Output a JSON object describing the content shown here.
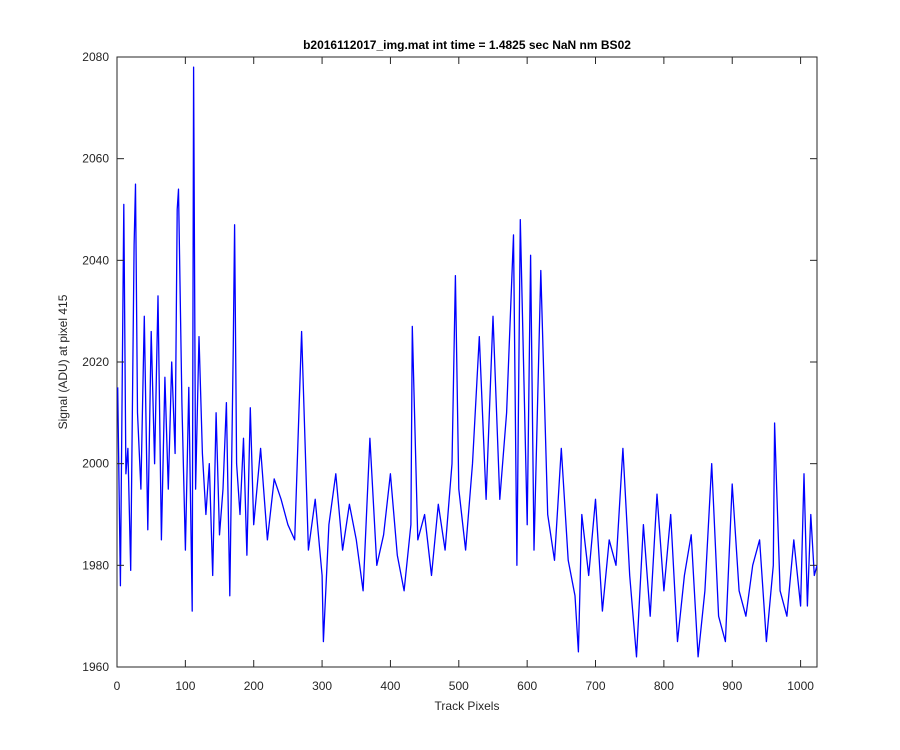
{
  "chart_data": {
    "type": "line",
    "title": "b2016112017_img.mat int time = 1.4825 sec  NaN nm BS02",
    "xlabel": "Track Pixels",
    "ylabel": "Signal (ADU) at pixel 415",
    "xlim": [
      0,
      1024
    ],
    "ylim": [
      1960,
      2080
    ],
    "xticks": [
      "0",
      "100",
      "200",
      "300",
      "400",
      "500",
      "600",
      "700",
      "800",
      "900",
      "1000"
    ],
    "yticks": [
      "1960",
      "1980",
      "2000",
      "2020",
      "2040",
      "2060",
      "2080"
    ],
    "grid": false,
    "legend": "none",
    "line_color": "#0000ff",
    "series": [
      {
        "x": [
          1,
          5,
          10,
          13,
          16,
          20,
          25,
          27,
          30,
          35,
          40,
          45,
          50,
          55,
          60,
          65,
          70,
          75,
          80,
          85,
          88,
          90,
          95,
          100,
          105,
          110,
          112,
          115,
          120,
          125,
          130,
          135,
          140,
          145,
          150,
          155,
          160,
          165,
          170,
          172,
          175,
          180,
          185,
          190,
          195,
          200,
          210,
          220,
          230,
          240,
          250,
          260,
          270,
          280,
          290,
          300,
          302,
          310,
          320,
          330,
          340,
          350,
          360,
          370,
          380,
          390,
          400,
          410,
          420,
          430,
          432,
          440,
          450,
          460,
          470,
          480,
          490,
          495,
          500,
          510,
          520,
          530,
          540,
          550,
          560,
          570,
          580,
          585,
          590,
          600,
          605,
          610,
          620,
          630,
          640,
          650,
          660,
          670,
          675,
          680,
          690,
          700,
          710,
          720,
          730,
          740,
          750,
          760,
          770,
          780,
          790,
          800,
          810,
          820,
          830,
          840,
          850,
          860,
          870,
          880,
          890,
          900,
          910,
          920,
          930,
          940,
          950,
          960,
          962,
          965,
          970,
          980,
          990,
          1000,
          1005,
          1010,
          1015,
          1020,
          1024
        ],
        "y": [
          2015,
          1976,
          2051,
          1998,
          2003,
          1979,
          2043,
          2055,
          2010,
          1995,
          2029,
          1987,
          2026,
          2000,
          2033,
          1985,
          2017,
          1995,
          2020,
          2002,
          2050,
          2054,
          2012,
          1983,
          2015,
          1971,
          2078,
          1995,
          2025,
          2002,
          1990,
          2000,
          1978,
          2010,
          1986,
          1995,
          2012,
          1974,
          2022,
          2047,
          2000,
          1990,
          2005,
          1982,
          2011,
          1988,
          2003,
          1985,
          1997,
          1993,
          1988,
          1985,
          2026,
          1983,
          1993,
          1978,
          1965,
          1988,
          1998,
          1983,
          1992,
          1985,
          1975,
          2005,
          1980,
          1986,
          1998,
          1982,
          1975,
          1988,
          2027,
          1985,
          1990,
          1978,
          1992,
          1983,
          2000,
          2037,
          1995,
          1983,
          2000,
          2025,
          1993,
          2029,
          1993,
          2010,
          2045,
          1980,
          2048,
          1988,
          2041,
          1983,
          2038,
          1990,
          1981,
          2003,
          1981,
          1974,
          1963,
          1990,
          1978,
          1993,
          1971,
          1985,
          1980,
          2003,
          1978,
          1962,
          1988,
          1970,
          1994,
          1975,
          1990,
          1965,
          1978,
          1986,
          1962,
          1975,
          2000,
          1970,
          1965,
          1996,
          1975,
          1970,
          1980,
          1985,
          1965,
          1980,
          2008,
          1995,
          1975,
          1970,
          1985,
          1972,
          1998,
          1972,
          1990,
          1978,
          1980
        ]
      }
    ]
  }
}
